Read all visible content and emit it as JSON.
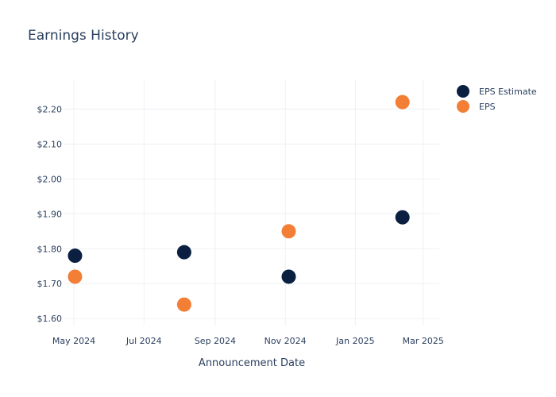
{
  "chart_data": {
    "type": "scatter",
    "title": "Earnings History",
    "xlabel": "Announcement Date",
    "ylabel": "",
    "x_ticks": [
      "May 2024",
      "Jul 2024",
      "Sep 2024",
      "Nov 2024",
      "Jan 2025",
      "Mar 2025"
    ],
    "y_ticks": [
      "$1.60",
      "$1.70",
      "$1.80",
      "$1.90",
      "$2.00",
      "$2.10",
      "$2.20"
    ],
    "xlim": [
      "2024-04-22",
      "2025-03-15"
    ],
    "ylim": [
      1.58,
      2.285
    ],
    "grid": true,
    "legend": "top-right",
    "series": [
      {
        "name": "EPS Estimate",
        "color": "#0b1f41",
        "points": [
          {
            "x": "2024-05-02",
            "y": 1.78
          },
          {
            "x": "2024-08-05",
            "y": 1.79
          },
          {
            "x": "2024-11-04",
            "y": 1.72
          },
          {
            "x": "2025-02-11",
            "y": 1.89
          }
        ]
      },
      {
        "name": "EPS",
        "color": "#f37f36",
        "points": [
          {
            "x": "2024-05-02",
            "y": 1.72
          },
          {
            "x": "2024-08-05",
            "y": 1.64
          },
          {
            "x": "2024-11-04",
            "y": 1.85
          },
          {
            "x": "2025-02-11",
            "y": 2.22
          }
        ]
      }
    ]
  }
}
